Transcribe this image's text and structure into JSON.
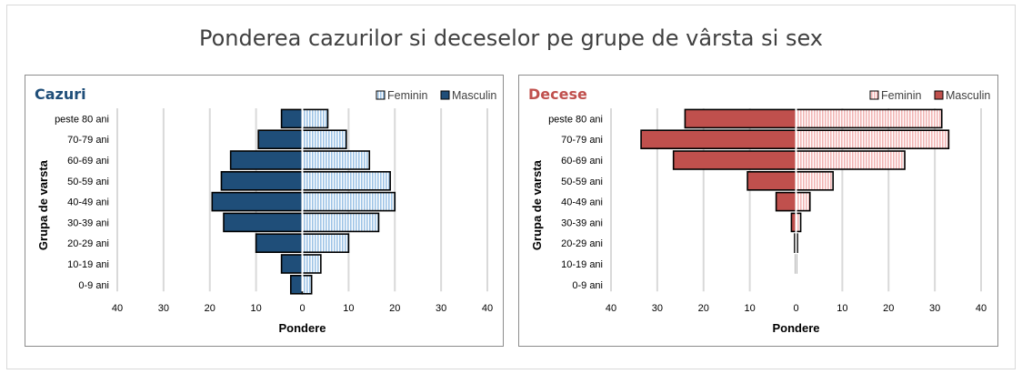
{
  "title": "Ponderea cazurilor si deceselor pe grupe de vârsta si sex",
  "colors": {
    "cazuri_masculin": "#1f4e79",
    "cazuri_feminin": "#9dc3e6",
    "cazuri_title": "#1f4e79",
    "decese_masculin": "#c0504d",
    "decese_feminin": "#f2b5b4",
    "decese_title": "#c0504d"
  },
  "chart_data": [
    {
      "type": "bar",
      "title": "Cazuri",
      "xlabel": "Pondere",
      "ylabel": "Grupa de varsta",
      "categories": [
        "peste 80 ani",
        "70-79 ani",
        "60-69 ani",
        "50-59 ani",
        "40-49 ani",
        "30-39 ani",
        "20-29 ani",
        "10-19 ani",
        "0-9 ani"
      ],
      "series": [
        {
          "name": "Feminin",
          "values": [
            5.5,
            9.5,
            14.5,
            19,
            20,
            16.5,
            10,
            4,
            2
          ]
        },
        {
          "name": "Masculin",
          "values": [
            4.5,
            9.5,
            15.5,
            17.5,
            19.5,
            17,
            10,
            4.5,
            2.5
          ]
        }
      ],
      "xlim": [
        -40,
        40
      ],
      "xticks": [
        "40",
        "30",
        "20",
        "10",
        "0",
        "10",
        "20",
        "30",
        "40"
      ],
      "grid": true,
      "legend_position": "top-right"
    },
    {
      "type": "bar",
      "title": "Decese",
      "xlabel": "Pondere",
      "ylabel": "Grupa de varsta",
      "categories": [
        "peste 80 ani",
        "70-79 ani",
        "60-69 ani",
        "50-59 ani",
        "40-49 ani",
        "30-39 ani",
        "20-29 ani",
        "10-19 ani",
        "0-9 ani"
      ],
      "series": [
        {
          "name": "Feminin",
          "values": [
            31.5,
            33,
            23.5,
            8,
            3,
            1,
            0.3,
            0.1,
            0
          ]
        },
        {
          "name": "Masculin",
          "values": [
            24,
            33.5,
            26.5,
            10.5,
            4.3,
            1,
            0.3,
            0.1,
            0
          ]
        }
      ],
      "xlim": [
        -40,
        40
      ],
      "xticks": [
        "40",
        "30",
        "20",
        "10",
        "0",
        "10",
        "20",
        "30",
        "40"
      ],
      "grid": true,
      "legend_position": "top-right"
    }
  ]
}
